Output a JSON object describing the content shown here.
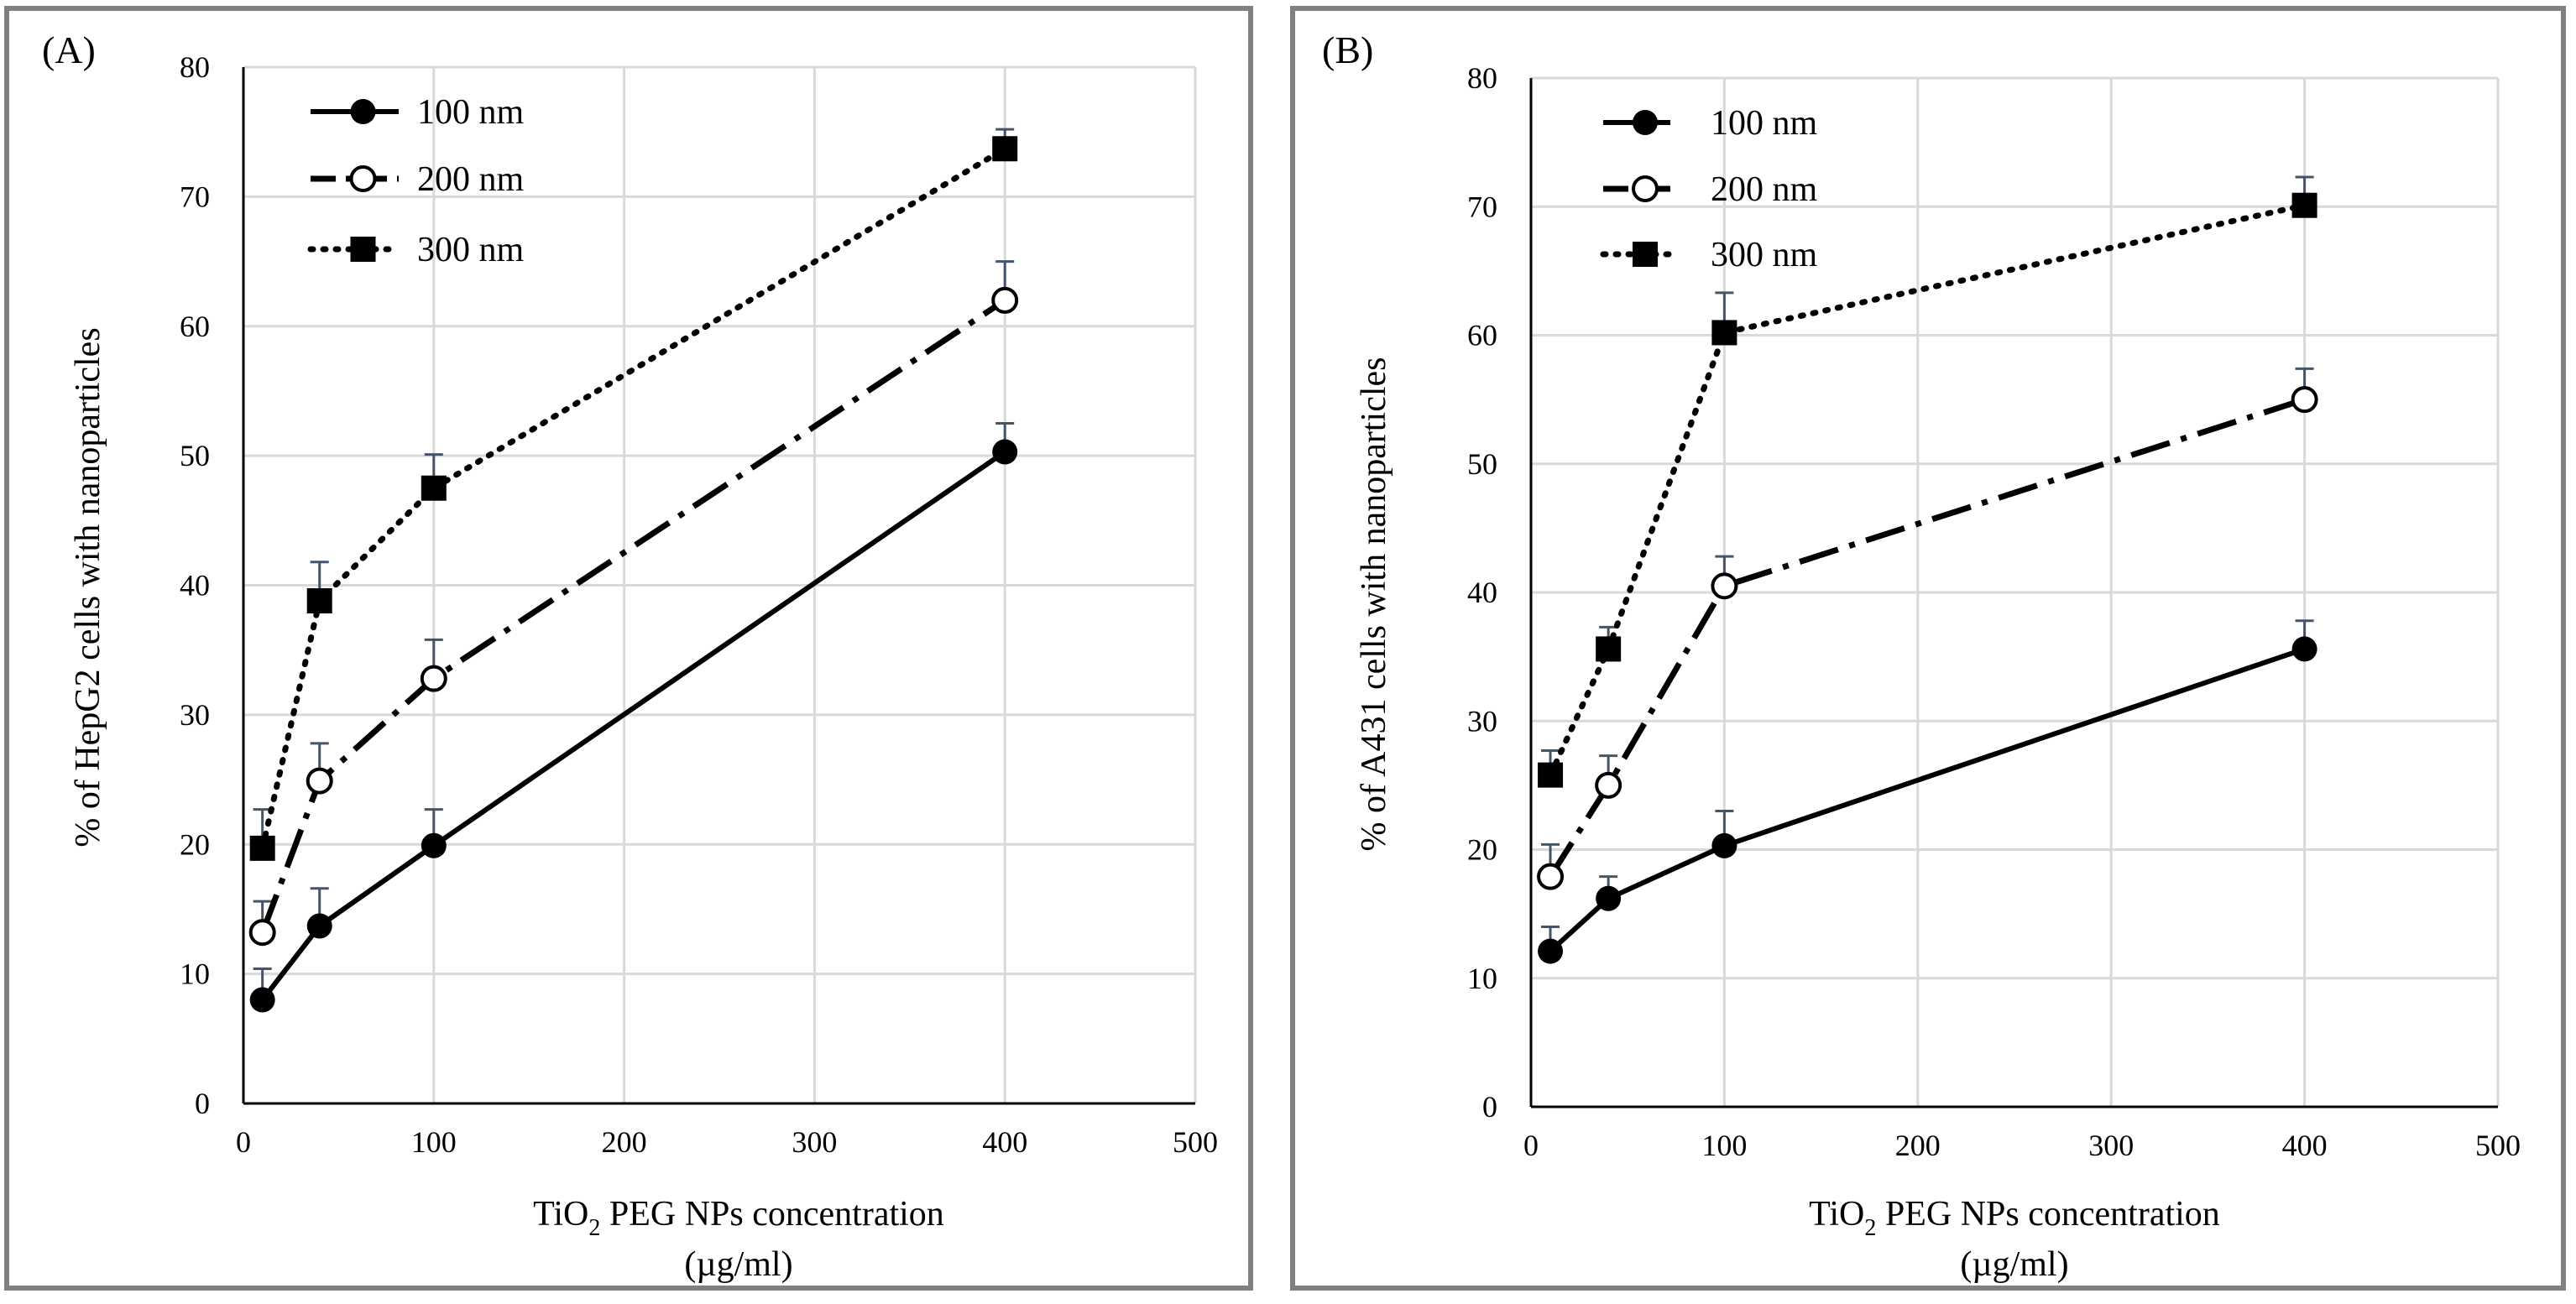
{
  "chart_data": [
    {
      "type": "line",
      "panel_label": "(A)",
      "ylabel": "% of HepG2 cells with nanoparticles",
      "xlabel_main": "TiO",
      "xlabel_sub": "2",
      "xlabel_rest": " PEG NPs concentration",
      "xlabel_line2": "(µg/ml)",
      "xlim": [
        0,
        500
      ],
      "ylim": [
        0,
        80
      ],
      "x_ticks": [
        0,
        100,
        200,
        300,
        400,
        500
      ],
      "y_ticks": [
        0,
        10,
        20,
        30,
        40,
        50,
        60,
        70,
        80
      ],
      "grid": true,
      "legend_position": "top-left",
      "x": [
        10,
        40,
        100,
        400
      ],
      "series": [
        {
          "name": "100 nm",
          "marker": "filled-circle",
          "line": "solid",
          "values": [
            8,
            13.7,
            19.9,
            50.3
          ],
          "errors": [
            2.4,
            2.9,
            2.8,
            2.2
          ]
        },
        {
          "name": "200 nm",
          "marker": "open-circle",
          "line": "dash-dot",
          "values": [
            13.2,
            24.9,
            32.8,
            62
          ],
          "errors": [
            2.4,
            2.9,
            3.0,
            3.0
          ]
        },
        {
          "name": "300 nm",
          "marker": "filled-square",
          "line": "dotted",
          "values": [
            19.7,
            38.8,
            47.5,
            73.7
          ],
          "errors": [
            3.0,
            3.0,
            2.6,
            1.5
          ]
        }
      ]
    },
    {
      "type": "line",
      "panel_label": "(B)",
      "ylabel": "% of A431 cells with nanoparticles",
      "xlabel_main": "TiO",
      "xlabel_sub": "2",
      "xlabel_rest": " PEG NPs concentration",
      "xlabel_line2": "(µg/ml)",
      "xlim": [
        0,
        500
      ],
      "ylim": [
        0,
        80
      ],
      "x_ticks": [
        0,
        100,
        200,
        300,
        400,
        500
      ],
      "y_ticks": [
        0,
        10,
        20,
        30,
        40,
        50,
        60,
        70,
        80
      ],
      "grid": true,
      "legend_position": "top-left",
      "x": [
        10,
        40,
        100,
        400
      ],
      "series": [
        {
          "name": "100 nm",
          "marker": "filled-circle",
          "line": "solid",
          "values": [
            12.1,
            16.2,
            20.3,
            35.6
          ],
          "errors": [
            1.9,
            1.7,
            2.7,
            2.2
          ]
        },
        {
          "name": "200 nm",
          "marker": "open-circle",
          "line": "dash-dot",
          "values": [
            17.9,
            25,
            40.5,
            55
          ],
          "errors": [
            2.5,
            2.3,
            2.3,
            2.4
          ]
        },
        {
          "name": "300 nm",
          "marker": "filled-square",
          "line": "dotted",
          "values": [
            25.8,
            35.6,
            60.2,
            70.1
          ],
          "errors": [
            1.9,
            1.7,
            3.1,
            2.2
          ]
        }
      ]
    }
  ]
}
